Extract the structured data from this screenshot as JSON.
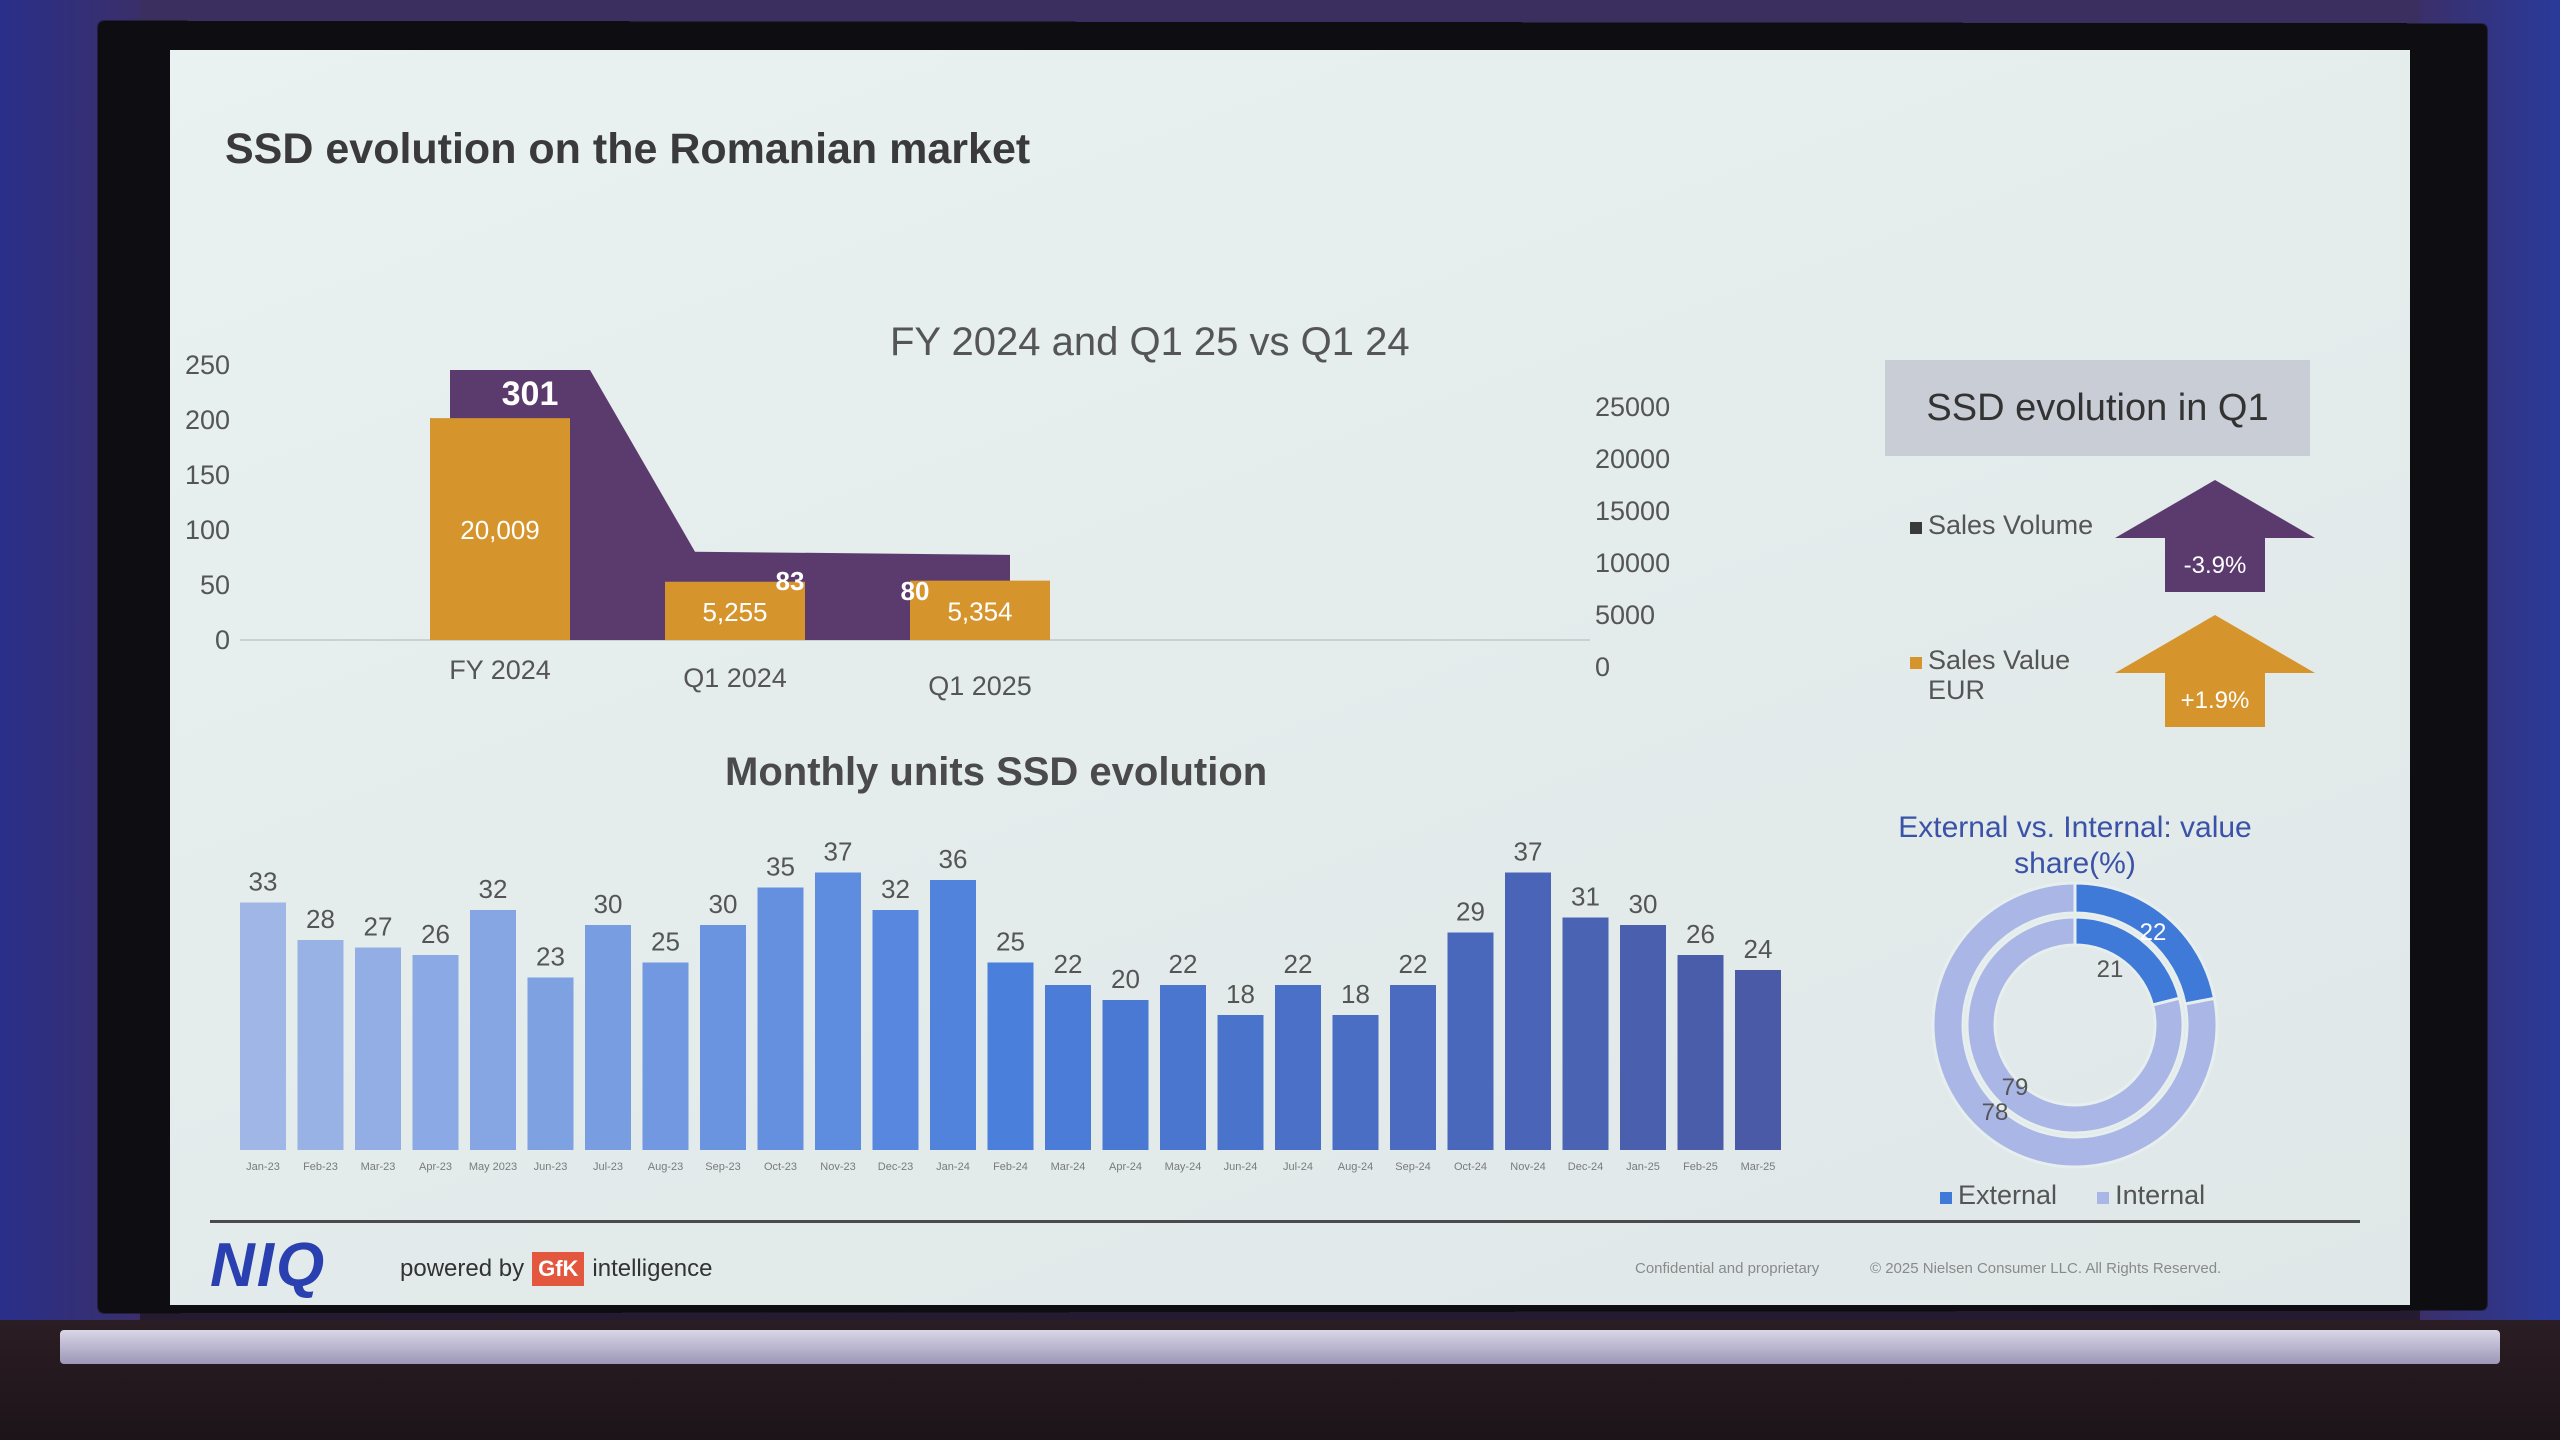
{
  "slide": {
    "title": "SSD evolution on the Romanian market",
    "combo_title": "FY 2024 and Q1 25 vs Q1 24",
    "monthly_title": "Monthly units SSD evolution",
    "q1_box": "SSD evolution in Q1",
    "donut_title": "External vs. Internal: value share(%)",
    "footer": {
      "logo": "NIQ",
      "powered_by": "powered by",
      "gfk": "GfK",
      "intelligence": "intelligence",
      "confidential": "Confidential and proprietary",
      "copyright": "© 2025 Nielsen Consumer LLC. All Rights Reserved."
    }
  },
  "q1_summary": {
    "items": [
      {
        "label_line1": "Sales Volume",
        "label_line2": "",
        "change": "-3.9%",
        "direction": "down",
        "color": "#5b3a6e"
      },
      {
        "label_line1": "Sales Value",
        "label_line2": "EUR",
        "change": "+1.9%",
        "direction": "up",
        "color": "#d6942c"
      }
    ]
  },
  "colors": {
    "purple": "#5b3a6e",
    "orange": "#d6942c",
    "blue_light": "#9fb6e6",
    "blue_mid": "#4a7fdc",
    "blue_dark": "#4a5aa6",
    "external": "#3f7ad8",
    "internal": "#a9b6e6"
  },
  "chart_data": [
    {
      "type": "bar",
      "title": "FY 2024 and Q1 25 vs Q1 24",
      "categories": [
        "FY 2024",
        "Q1 2024",
        "Q1 2025"
      ],
      "series": [
        {
          "values": [
            301,
            83,
            80
          ],
          "axis": "left",
          "style": "area",
          "color": "#5b3a6e"
        },
        {
          "values": [
            20009,
            5255,
            5354
          ],
          "axis": "right",
          "style": "bar",
          "color": "#d6942c"
        }
      ],
      "data_labels_left": [
        "301",
        "83",
        "80"
      ],
      "data_labels_right": [
        "20,009",
        "5,255",
        "5,354"
      ],
      "left_ticks": [
        "250",
        "200",
        "150",
        "100",
        "50",
        "0"
      ],
      "right_ticks": [
        "25000",
        "20000",
        "15000",
        "10000",
        "5000",
        "0"
      ],
      "left_ylim": [
        0,
        250
      ],
      "right_ylim": [
        0,
        25000
      ]
    },
    {
      "type": "bar",
      "title": "Monthly units SSD evolution",
      "categories": [
        "Jan-23",
        "Feb-23",
        "Mar-23",
        "Apr-23",
        "May 2023",
        "Jun-23",
        "Jul-23",
        "Aug-23",
        "Sep-23",
        "Oct-23",
        "Nov-23",
        "Dec-23",
        "Jan-24",
        "Feb-24",
        "Mar-24",
        "Apr-24",
        "May-24",
        "Jun-24",
        "Jul-24",
        "Aug-24",
        "Sep-24",
        "Oct-24",
        "Nov-24",
        "Dec-24",
        "Jan-25",
        "Feb-25",
        "Mar-25"
      ],
      "values": [
        33,
        28,
        27,
        26,
        32,
        23,
        30,
        25,
        30,
        35,
        37,
        32,
        36,
        25,
        22,
        20,
        22,
        18,
        22,
        18,
        22,
        29,
        37,
        31,
        30,
        26,
        24
      ],
      "ylim": [
        0,
        40
      ]
    },
    {
      "type": "pie",
      "title": "External vs. Internal: value share(%)",
      "rings": [
        {
          "name": "outer",
          "values": [
            22,
            78
          ],
          "labels": [
            "22",
            "78"
          ]
        },
        {
          "name": "inner",
          "values": [
            21,
            79
          ],
          "labels": [
            "21",
            "79"
          ]
        }
      ],
      "legend": [
        "External",
        "Internal"
      ]
    }
  ]
}
